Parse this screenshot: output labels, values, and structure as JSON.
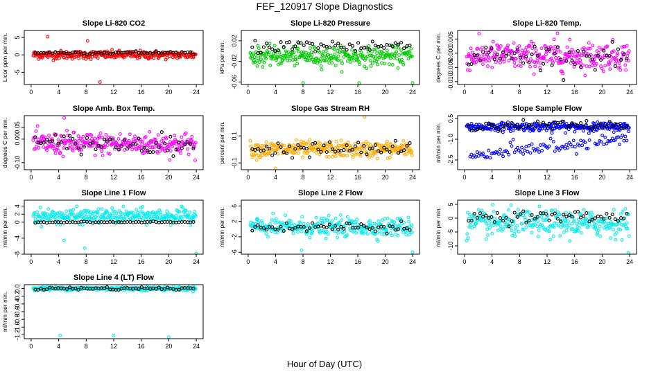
{
  "figure": {
    "title": "FEF_120917  Slope Diagnostics",
    "xlabel": "Hour of Day (UTC)"
  },
  "chart_data": [
    {
      "type": "scatter",
      "title": "Slope Li-820 CO2",
      "ylabel": "Licor ppm per min.",
      "color": "#ff0000",
      "xticks": [
        0,
        4,
        8,
        12,
        16,
        20,
        24
      ],
      "yticks": [
        -5,
        0,
        5
      ],
      "ylim": [
        -8.5,
        7
      ],
      "center": 0,
      "spread": 1.0,
      "outliers": [
        [
          10.0,
          -7.8
        ],
        [
          2.4,
          5.2
        ],
        [
          8.2,
          4.0
        ]
      ],
      "black_center": 0.6,
      "black_spread": 0.3
    },
    {
      "type": "scatter",
      "title": "Slope Li-820 Pressure",
      "ylabel": "kPa per min.",
      "color": "#00cc00",
      "xticks": [
        0,
        4,
        8,
        12,
        16,
        20,
        24
      ],
      "yticks": [
        -0.06,
        -0.02,
        0.02
      ],
      "ylim": [
        -0.065,
        0.04
      ],
      "center": -0.01,
      "spread": 0.015,
      "outliers": [
        [
          8.0,
          -0.062
        ],
        [
          16.2,
          -0.062
        ],
        [
          24.0,
          -0.062
        ]
      ],
      "black_center": 0.01,
      "black_spread": 0.01
    },
    {
      "type": "scatter",
      "title": "Slope Li-820 Temp.",
      "ylabel": "degrees C per min.",
      "color": "#ff00ff",
      "xticks": [
        0,
        4,
        8,
        12,
        16,
        20,
        24
      ],
      "yticks": [
        -0.01,
        -0.005,
        0.0,
        0.005
      ],
      "ylim": [
        -0.011,
        0.008
      ],
      "center": -0.001,
      "spread": 0.004,
      "outliers": [
        [
          13.5,
          0.007
        ]
      ],
      "black_center": -0.001,
      "black_spread": 0.003
    },
    {
      "type": "scatter",
      "title": "Slope Amb. Box Temp.",
      "ylabel": "degrees C per min.",
      "color": "#ff00ff",
      "xticks": [
        0,
        4,
        8,
        12,
        16,
        20,
        24
      ],
      "yticks": [
        -0.1,
        0.0,
        0.05
      ],
      "ylim": [
        -0.13,
        0.1
      ],
      "center": -0.02,
      "spread": 0.04,
      "outliers": [
        [
          4.8,
          0.09
        ]
      ],
      "black_center": -0.02,
      "black_spread": 0.03
    },
    {
      "type": "scatter",
      "title": "Slope Gas Stream RH",
      "ylabel": "percent per min.",
      "color": "#ffaa00",
      "xticks": [
        0,
        4,
        8,
        12,
        16,
        20,
        24
      ],
      "yticks": [
        -0.1,
        0.1
      ],
      "ylim": [
        -0.15,
        0.25
      ],
      "center": 0.0,
      "spread": 0.05,
      "outliers": [
        [
          17.0,
          0.24
        ],
        [
          4.0,
          -0.14
        ]
      ],
      "black_center": 0.0,
      "black_spread": 0.04
    },
    {
      "type": "scatter",
      "title": "Slope Sample Flow",
      "ylabel": "ml/min per min.",
      "color": "#0000ff",
      "xticks": [
        0,
        4,
        8,
        12,
        16,
        20,
        24
      ],
      "yticks": [
        -2.5,
        -1.0,
        0.5
      ],
      "ylim": [
        -3.2,
        0.7
      ],
      "center": -0.1,
      "spread": 0.25,
      "band2_start": -2.2,
      "band2_end": -1.0,
      "black_center": 0.0,
      "black_spread": 0.25
    },
    {
      "type": "scatter",
      "title": "Slope Line 1 Flow",
      "ylabel": "ml/min per min.",
      "color": "#00eeee",
      "xticks": [
        0,
        4,
        8,
        12,
        16,
        20,
        24
      ],
      "yticks": [
        -8,
        -4,
        0,
        2,
        4
      ],
      "ylim": [
        -8,
        5.5
      ],
      "center": 1.5,
      "spread": 1.5,
      "outliers": [
        [
          7.8,
          -6.5
        ],
        [
          24.0,
          -7.8
        ],
        [
          4.8,
          -4.5
        ]
      ],
      "black_center": 0.0,
      "black_spread": 0.1
    },
    {
      "type": "scatter",
      "title": "Slope Line 2 Flow",
      "ylabel": "ml/min per min.",
      "color": "#00eeee",
      "xticks": [
        0,
        4,
        8,
        12,
        16,
        20,
        24
      ],
      "yticks": [
        -6,
        -2,
        2,
        6
      ],
      "ylim": [
        -6.5,
        7.5
      ],
      "center": 0.5,
      "spread": 2.0,
      "outliers": [
        [
          7.8,
          -5.5
        ],
        [
          24.0,
          -6.0
        ]
      ],
      "black_center": 0.5,
      "black_spread": 1.0
    },
    {
      "type": "scatter",
      "title": "Slope Line 3 Flow",
      "ylabel": "ml/min per min.",
      "color": "#00eeee",
      "xticks": [
        0,
        4,
        8,
        12,
        16,
        20,
        24
      ],
      "yticks": [
        -10,
        -5,
        0,
        5
      ],
      "ylim": [
        -13,
        6.5
      ],
      "center": -2,
      "spread": 4.0,
      "outliers": [
        [
          23.8,
          -12.5
        ]
      ],
      "black_center": 0.5,
      "black_spread": 1.5
    },
    {
      "type": "scatter",
      "title": "Slope Line 4 (LT) Flow",
      "ylabel": "ml/min per min.",
      "color": "#00eeee",
      "xticks": [
        0,
        4,
        8,
        12,
        16,
        20,
        24
      ],
      "yticks": [
        -1.2,
        -1.0,
        -0.8,
        -0.6,
        -0.4,
        -0.2,
        0.0
      ],
      "ylim": [
        -1.3,
        0.1
      ],
      "center": 0.0,
      "spread": 0.04,
      "outliers": [
        [
          4.2,
          -1.22
        ],
        [
          12.0,
          -1.22
        ],
        [
          20.0,
          -1.26
        ]
      ],
      "black_center": 0.0,
      "black_spread": 0.03
    }
  ]
}
